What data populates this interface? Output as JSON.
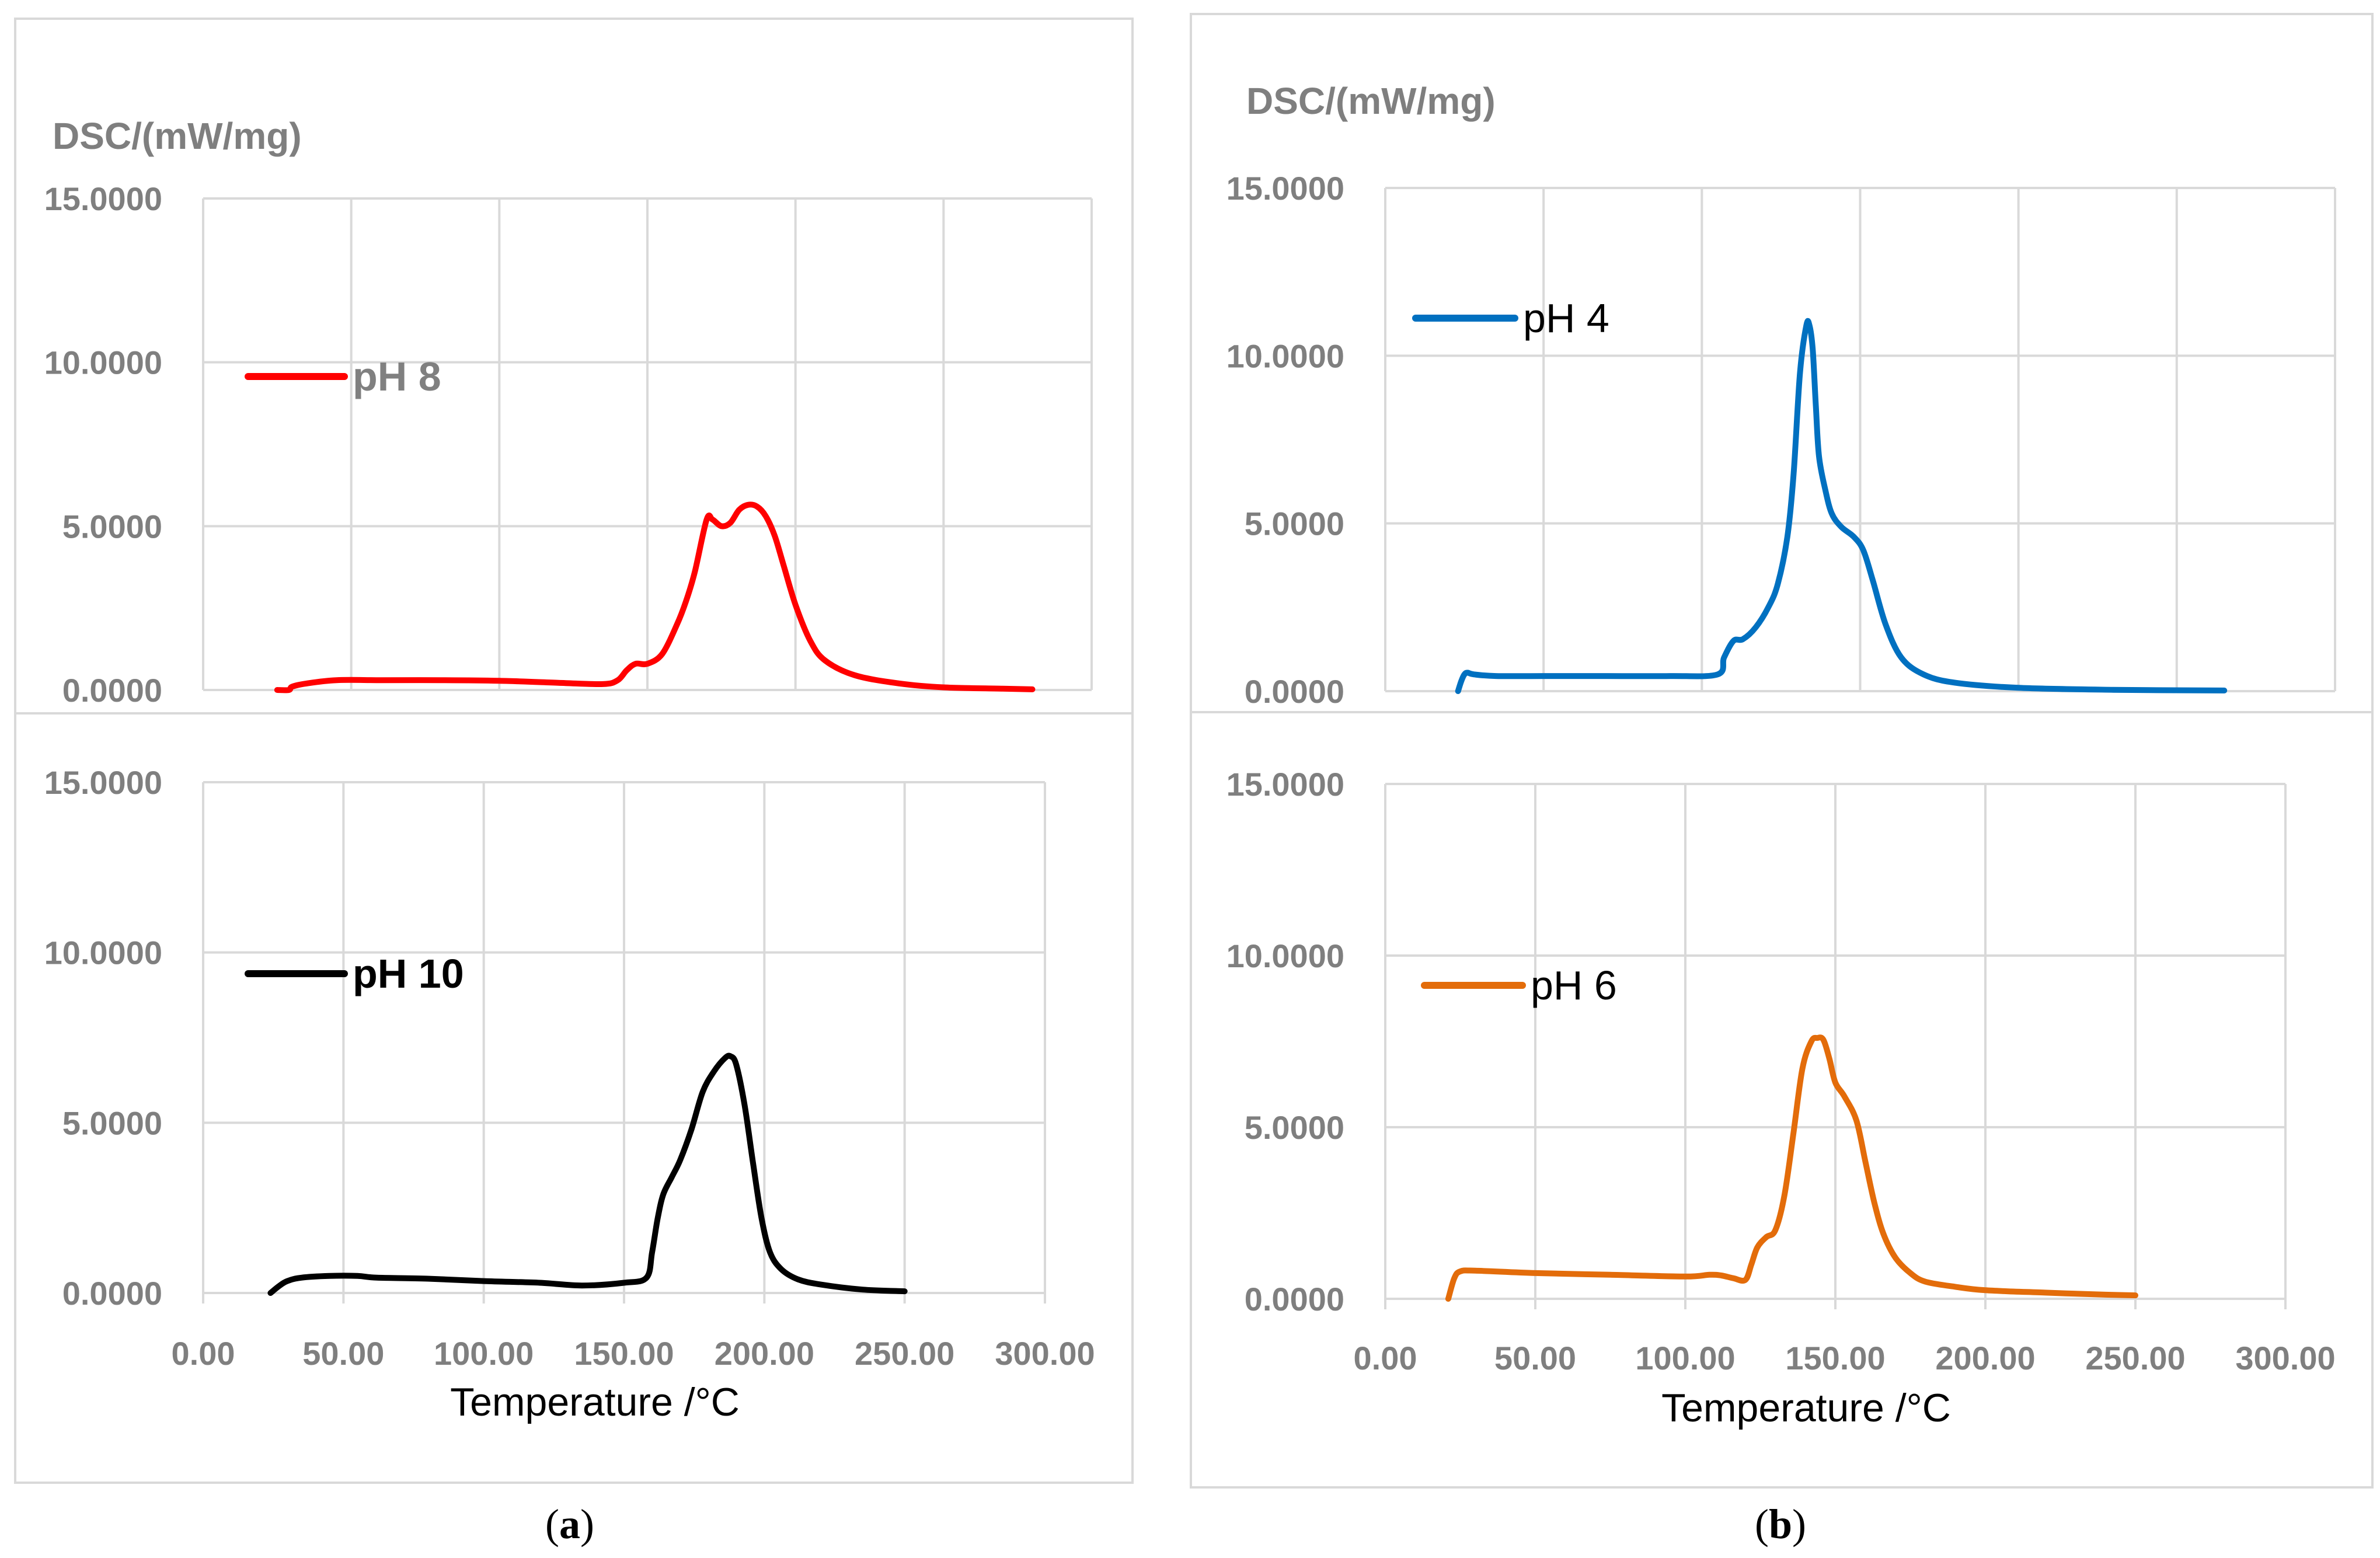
{
  "chart_data": [
    {
      "id": "ph8",
      "type": "line",
      "panel": "a",
      "ylabel": "DSC/(mW/mg)",
      "xlabel": "",
      "ylim": [
        0,
        15
      ],
      "xlim": [
        0,
        300
      ],
      "yticks": [
        "0.0000",
        "5.0000",
        "10.0000",
        "15.0000"
      ],
      "xticks": [],
      "grid": true,
      "legend": "top-left",
      "series": [
        {
          "name": "pH 8",
          "color": "#ff0000",
          "legend_color": "#808080",
          "legend_bold": true,
          "x": [
            25,
            29,
            30,
            35,
            45,
            60,
            80,
            100,
            120,
            135,
            140,
            143,
            146,
            150,
            155,
            160,
            163,
            166,
            170,
            172,
            175,
            178,
            181,
            184,
            187,
            190,
            193,
            196,
            200,
            205,
            210,
            220,
            235,
            250,
            270,
            280
          ],
          "y": [
            0.0,
            0.0,
            0.1,
            0.2,
            0.3,
            0.3,
            0.3,
            0.28,
            0.22,
            0.18,
            0.3,
            0.6,
            0.8,
            0.8,
            1.1,
            2.0,
            2.7,
            3.6,
            5.2,
            5.2,
            5.0,
            5.1,
            5.5,
            5.65,
            5.6,
            5.3,
            4.7,
            3.8,
            2.6,
            1.5,
            0.9,
            0.45,
            0.2,
            0.08,
            0.04,
            0.02
          ]
        }
      ]
    },
    {
      "id": "ph10",
      "type": "line",
      "panel": "a",
      "ylabel": "",
      "xlabel": "Temperature /°C",
      "ylim": [
        0,
        15
      ],
      "xlim": [
        0,
        300
      ],
      "yticks": [
        "0.0000",
        "5.0000",
        "10.0000",
        "15.0000"
      ],
      "xticks": [
        "0.00",
        "50.00",
        "100.00",
        "150.00",
        "200.00",
        "250.00",
        "300.00"
      ],
      "grid": true,
      "legend": "top-left",
      "series": [
        {
          "name": "pH 10",
          "color": "#000000",
          "legend_color": "#000000",
          "legend_bold": true,
          "x": [
            24,
            27,
            30,
            35,
            45,
            55,
            62,
            80,
            100,
            120,
            135,
            150,
            158,
            160,
            162,
            164,
            167,
            170,
            174,
            178,
            182,
            186,
            188,
            190,
            193,
            196,
            199,
            202,
            206,
            212,
            220,
            235,
            250
          ],
          "y": [
            0.0,
            0.2,
            0.35,
            0.45,
            0.5,
            0.5,
            0.45,
            0.42,
            0.35,
            0.3,
            0.22,
            0.3,
            0.45,
            1.2,
            2.2,
            2.9,
            3.4,
            3.9,
            4.8,
            5.9,
            6.5,
            6.9,
            6.95,
            6.7,
            5.5,
            3.8,
            2.2,
            1.2,
            0.7,
            0.4,
            0.25,
            0.1,
            0.05
          ]
        }
      ]
    },
    {
      "id": "ph4",
      "type": "line",
      "panel": "b",
      "ylabel": "DSC/(mW/mg)",
      "xlabel": "",
      "ylim": [
        0,
        15
      ],
      "xlim": [
        0,
        300
      ],
      "yticks": [
        "0.0000",
        "5.0000",
        "10.0000",
        "15.0000"
      ],
      "xticks": [],
      "grid": true,
      "legend": "top-left",
      "series": [
        {
          "name": "pH 4",
          "color": "#0070c0",
          "legend_color": "#000000",
          "legend_bold": false,
          "x": [
            23,
            24,
            25,
            26,
            28,
            35,
            50,
            70,
            90,
            105,
            107,
            110,
            113,
            117,
            121,
            124,
            127,
            129,
            131,
            133,
            134,
            135,
            136,
            137,
            139,
            141,
            144,
            148,
            151,
            154,
            158,
            163,
            170,
            180,
            200,
            230,
            265
          ],
          "y": [
            0.0,
            0.3,
            0.5,
            0.55,
            0.5,
            0.45,
            0.45,
            0.45,
            0.45,
            0.5,
            1.0,
            1.5,
            1.55,
            1.9,
            2.5,
            3.2,
            4.6,
            6.5,
            9.5,
            10.9,
            10.9,
            10.2,
            8.5,
            7.0,
            6.0,
            5.3,
            4.9,
            4.6,
            4.2,
            3.3,
            2.0,
            1.0,
            0.5,
            0.25,
            0.1,
            0.04,
            0.02
          ]
        }
      ]
    },
    {
      "id": "ph6",
      "type": "line",
      "panel": "b",
      "ylabel": "",
      "xlabel": "Temperature /°C",
      "ylim": [
        0,
        15
      ],
      "xlim": [
        0,
        300
      ],
      "yticks": [
        "0.0000",
        "5.0000",
        "10.0000",
        "15.0000"
      ],
      "xticks": [
        "0.00",
        "50.00",
        "100.00",
        "150.00",
        "200.00",
        "250.00",
        "300.00"
      ],
      "grid": true,
      "legend": "top-left",
      "series": [
        {
          "name": "pH 6",
          "color": "#e36c0a",
          "legend_color": "#000000",
          "legend_bold": false,
          "x": [
            21,
            23,
            25,
            30,
            50,
            75,
            100,
            108,
            112,
            116,
            120,
            122,
            124,
            127,
            130,
            133,
            136,
            139,
            142,
            144,
            146,
            148,
            150,
            153,
            157,
            160,
            163,
            166,
            170,
            175,
            180,
            190,
            200,
            220,
            240,
            250
          ],
          "y": [
            0.0,
            0.6,
            0.8,
            0.82,
            0.75,
            0.7,
            0.65,
            0.7,
            0.68,
            0.6,
            0.55,
            1.0,
            1.5,
            1.8,
            2.0,
            3.0,
            4.8,
            6.7,
            7.5,
            7.6,
            7.55,
            7.0,
            6.3,
            5.9,
            5.2,
            4.0,
            2.8,
            1.9,
            1.2,
            0.75,
            0.5,
            0.35,
            0.25,
            0.18,
            0.12,
            0.1
          ]
        }
      ]
    }
  ],
  "captions": {
    "a": {
      "open": "(",
      "letter": "a",
      "close": ")"
    },
    "b": {
      "open": "(",
      "letter": "b",
      "close": ")"
    }
  }
}
